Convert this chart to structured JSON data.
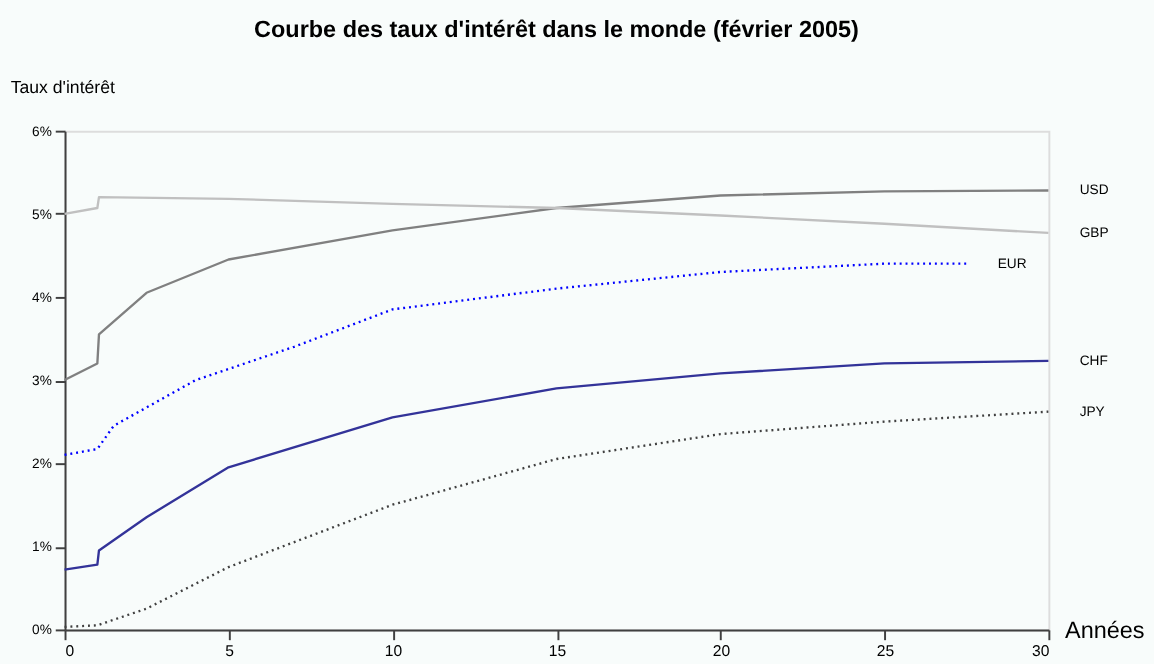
{
  "chart_data": {
    "type": "line",
    "title": "Courbe des taux d'intérêt dans le monde (février 2005)",
    "xlabel": "Années",
    "ylabel": "Taux d'intérêt",
    "xlim": [
      0,
      30
    ],
    "xticks": [
      0,
      5,
      10,
      15,
      20,
      25,
      30
    ],
    "ylim": [
      0,
      6
    ],
    "yticks": [
      {
        "value": 0,
        "label": "0%"
      },
      {
        "value": 1,
        "label": "1%"
      },
      {
        "value": 2,
        "label": "2%"
      },
      {
        "value": 3,
        "label": "3%"
      },
      {
        "value": 4,
        "label": "4%"
      },
      {
        "value": 5,
        "label": "5%"
      },
      {
        "value": 6,
        "label": "6%"
      }
    ],
    "grid": false,
    "legend": false,
    "marker": "none",
    "series": [
      {
        "name": "USD",
        "color": "#808080",
        "line_style": "solid",
        "x": [
          0,
          1,
          1.05,
          2.5,
          5,
          10,
          15,
          20,
          25,
          30
        ],
        "values": [
          3.0,
          3.2,
          3.55,
          4.05,
          4.45,
          4.8,
          5.07,
          5.22,
          5.27,
          5.28
        ]
      },
      {
        "name": "GBP",
        "color": "#c0c0c0",
        "line_style": "solid",
        "x": [
          0,
          1,
          1.05,
          5,
          10,
          15,
          20,
          25,
          30
        ],
        "values": [
          5.0,
          5.07,
          5.2,
          5.18,
          5.12,
          5.07,
          4.98,
          4.88,
          4.77
        ]
      },
      {
        "name": "EUR",
        "color": "#0000ff",
        "line_style": "dotted",
        "x": [
          0,
          1,
          1.5,
          4,
          7,
          10,
          15,
          20,
          25,
          27.5
        ],
        "values": [
          2.1,
          2.17,
          2.45,
          3.0,
          3.4,
          3.85,
          4.1,
          4.3,
          4.4,
          4.4
        ]
      },
      {
        "name": "CHF",
        "color": "#333399",
        "line_style": "solid",
        "x": [
          0,
          1,
          1.05,
          2.5,
          5,
          10,
          15,
          20,
          25,
          30
        ],
        "values": [
          0.72,
          0.78,
          0.95,
          1.35,
          1.95,
          2.55,
          2.9,
          3.08,
          3.2,
          3.23
        ]
      },
      {
        "name": "JPY",
        "color": "#404040",
        "line_style": "dotted",
        "x": [
          0,
          1,
          2.5,
          5,
          10,
          15,
          20,
          25,
          30
        ],
        "values": [
          0.03,
          0.05,
          0.25,
          0.75,
          1.5,
          2.05,
          2.35,
          2.5,
          2.62
        ]
      }
    ]
  }
}
